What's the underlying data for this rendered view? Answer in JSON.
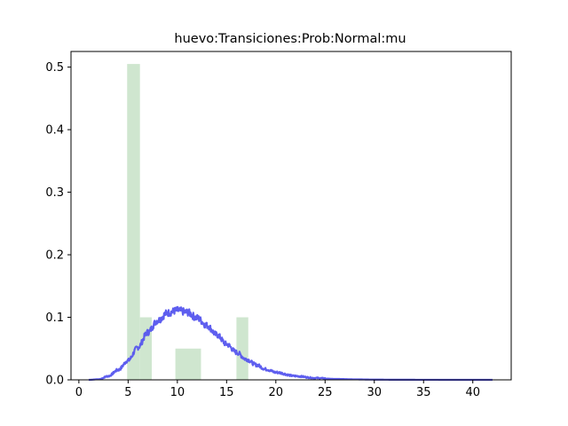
{
  "chart_data": {
    "type": "bar",
    "title": "huevo:Transiciones:Prob:Normal:mu",
    "xlabel": "",
    "ylabel": "",
    "xlim": [
      -0.8,
      43.9
    ],
    "ylim": [
      0,
      0.525
    ],
    "x_ticks": [
      0,
      5,
      10,
      15,
      20,
      25,
      30,
      35,
      40
    ],
    "x_tick_labels": [
      "0",
      "5",
      "10",
      "15",
      "20",
      "25",
      "30",
      "35",
      "40"
    ],
    "y_ticks": [
      0,
      0.1,
      0.2,
      0.3,
      0.4,
      0.5
    ],
    "y_tick_labels": [
      "0.0",
      "0.1",
      "0.2",
      "0.3",
      "0.4",
      "0.5"
    ],
    "grid": false,
    "legend": "none",
    "histogram": {
      "color": "#cfe6cf",
      "bins": [
        {
          "x0": 4.9,
          "x1": 6.2,
          "density": 0.505
        },
        {
          "x0": 6.2,
          "x1": 7.4,
          "density": 0.1
        },
        {
          "x0": 9.8,
          "x1": 12.4,
          "density": 0.05
        },
        {
          "x0": 16.0,
          "x1": 17.2,
          "density": 0.1
        }
      ]
    },
    "density_curve": {
      "color": "#5555ee",
      "distribution": "shifted lognormal (approx.)",
      "x": [
        1.0,
        2.0,
        3.0,
        4.0,
        5.0,
        6.0,
        7.0,
        8.0,
        9.0,
        10.0,
        11.0,
        12.0,
        13.0,
        14.0,
        15.0,
        16.0,
        17.0,
        18.0,
        19.0,
        20.0,
        22.0,
        24.0,
        26.0,
        28.0,
        30.0,
        32.0,
        35.0,
        38.0,
        42.0
      ],
      "y": [
        0.0,
        0.001,
        0.006,
        0.016,
        0.031,
        0.052,
        0.076,
        0.095,
        0.107,
        0.111,
        0.108,
        0.099,
        0.087,
        0.072,
        0.057,
        0.044,
        0.033,
        0.024,
        0.017,
        0.012,
        0.006,
        0.003,
        0.0015,
        0.0008,
        0.0004,
        0.0002,
        0.0001,
        0.0,
        0.0
      ]
    }
  }
}
